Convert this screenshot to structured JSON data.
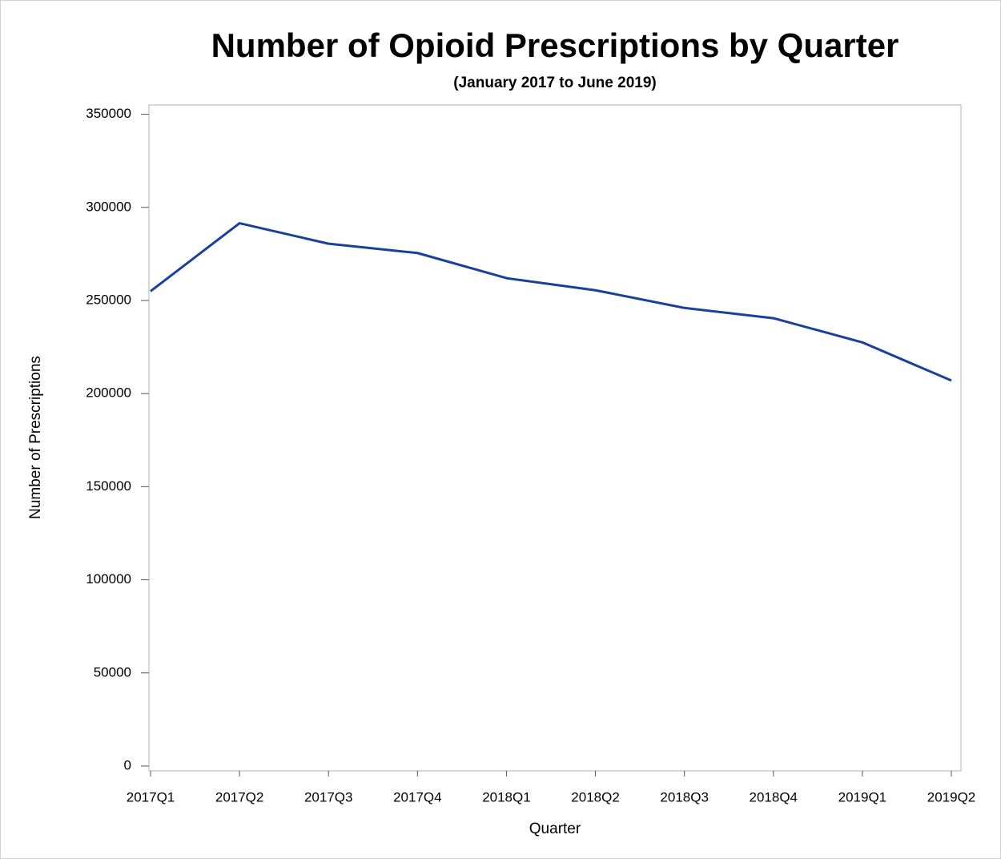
{
  "chart_data": {
    "type": "line",
    "title": "Number of Opioid Prescriptions by Quarter",
    "subtitle": "(January 2017 to June 2019)",
    "x_label": "Quarter",
    "y_label": "Number of Prescriptions",
    "categories": [
      "2017Q1",
      "2017Q2",
      "2017Q3",
      "2017Q4",
      "2018Q1",
      "2018Q2",
      "2018Q3",
      "2018Q4",
      "2019Q1",
      "2019Q2"
    ],
    "series": [
      {
        "name": "Number of Prescriptions",
        "color": "#1a3f9c",
        "values": [
          255000,
          291500,
          280500,
          275500,
          262000,
          255500,
          246000,
          240500,
          227500,
          207000
        ]
      }
    ],
    "ylim": [
      -2600,
      355000
    ],
    "yticks": [
      0,
      50000,
      100000,
      150000,
      200000,
      250000,
      300000,
      350000
    ]
  }
}
